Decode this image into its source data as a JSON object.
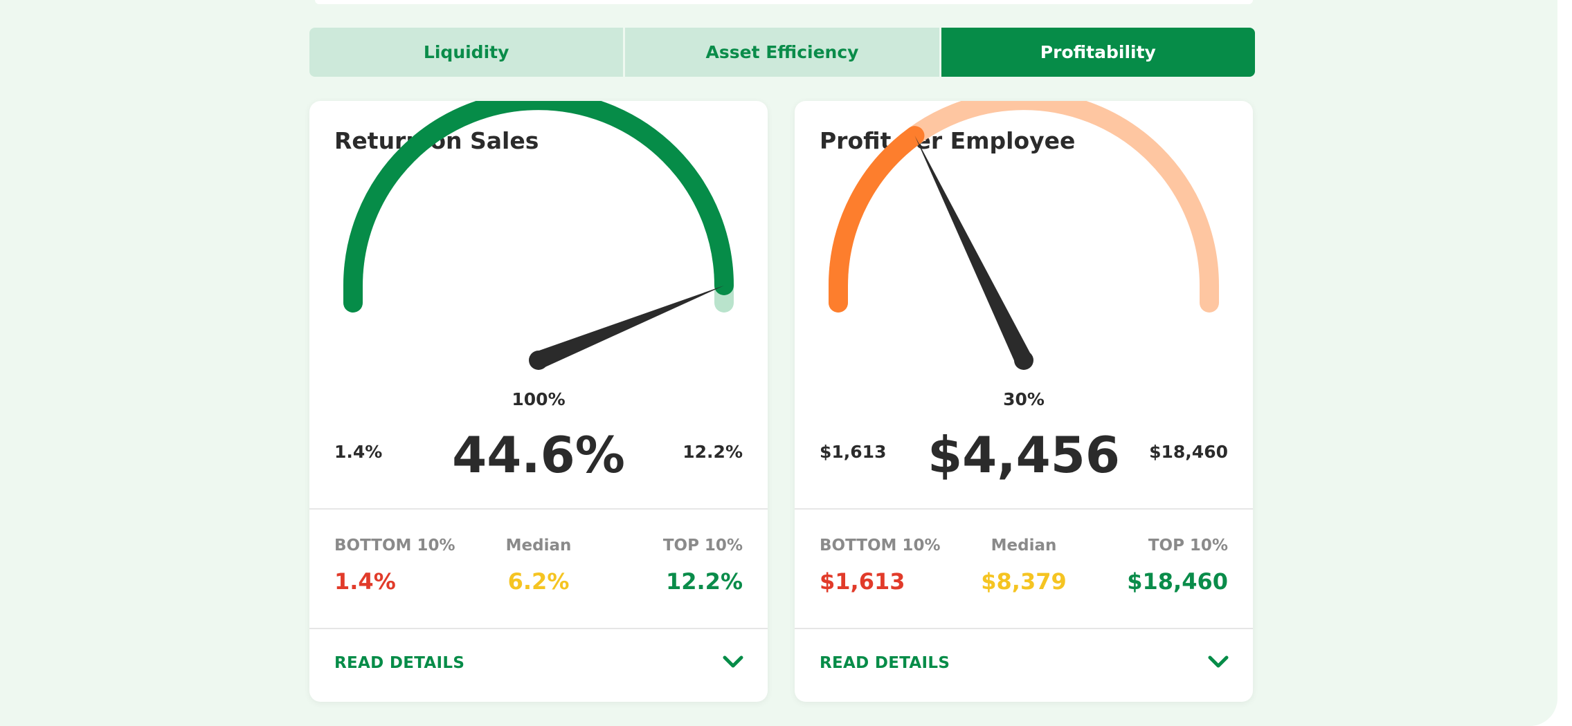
{
  "tabs": [
    {
      "label": "Liquidity",
      "active": false
    },
    {
      "label": "Asset Efficiency",
      "active": false
    },
    {
      "label": "Profitability",
      "active": true
    }
  ],
  "cards": [
    {
      "title": "Return on Sales",
      "gauge": {
        "needle_percent_label": "100%",
        "needle_fraction": 1.0,
        "fill_color": "#068c48",
        "track_color": "#b9e3cc"
      },
      "range_min": "1.4%",
      "range_max": "12.2%",
      "value": "44.6%",
      "stats": {
        "bottom_label": "BOTTOM 10%",
        "bottom_value": "1.4%",
        "median_label": "Median",
        "median_value": "6.2%",
        "top_label": "TOP 10%",
        "top_value": "12.2%"
      },
      "read_details": "READ DETAILS"
    },
    {
      "title": "Profit per Employee",
      "gauge": {
        "needle_percent_label": "30%",
        "needle_fraction": 0.3,
        "fill_color": "#fd7e2d",
        "track_color": "#fec6a1"
      },
      "range_min": "$1,613",
      "range_max": "$18,460",
      "value": "$4,456",
      "stats": {
        "bottom_label": "BOTTOM 10%",
        "bottom_value": "$1,613",
        "median_label": "Median",
        "median_value": "$8,379",
        "top_label": "TOP 10%",
        "top_value": "$18,460"
      },
      "read_details": "READ DETAILS"
    }
  ],
  "colors": {
    "bottom": "#e13b2a",
    "median": "#f5c422",
    "top": "#0a8c4a",
    "accent": "#068c48"
  },
  "icons": {
    "chevron": "chevron-down-icon"
  }
}
